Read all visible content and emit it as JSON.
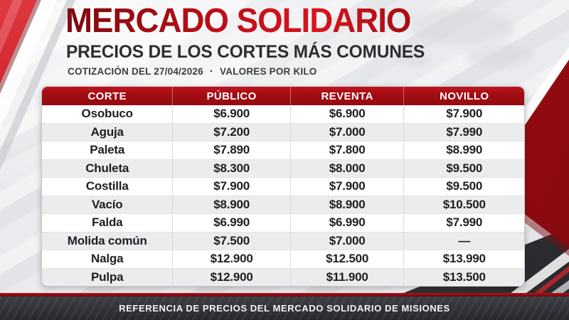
{
  "header": {
    "title": "MERCADO SOLIDARIO",
    "subtitle": "PRECIOS DE LOS CORTES MÁS COMUNES",
    "note_date": "COTIZACIÓN DEL 27/04/2026",
    "note_separator": "·",
    "note_unit": "VALORES POR KILO"
  },
  "table": {
    "columns": [
      "CORTE",
      "PÚBLICO",
      "REVENTA",
      "NOVILLO"
    ],
    "rows": [
      {
        "corte": "Osobuco",
        "publico": "$6.900",
        "reventa": "$6.900",
        "novillo": "$7.900"
      },
      {
        "corte": "Aguja",
        "publico": "$7.200",
        "reventa": "$7.000",
        "novillo": "$7.990"
      },
      {
        "corte": "Paleta",
        "publico": "$7.890",
        "reventa": "$7.800",
        "novillo": "$8.990"
      },
      {
        "corte": "Chuleta",
        "publico": "$8.300",
        "reventa": "$8.000",
        "novillo": "$9.500"
      },
      {
        "corte": "Costilla",
        "publico": "$7.900",
        "reventa": "$7.900",
        "novillo": "$9.500"
      },
      {
        "corte": "Vacío",
        "publico": "$8.900",
        "reventa": "$8.900",
        "novillo": "$10.500"
      },
      {
        "corte": "Falda",
        "publico": "$6.990",
        "reventa": "$6.990",
        "novillo": "$7.990"
      },
      {
        "corte": "Molida común",
        "publico": "$7.500",
        "reventa": "$7.000",
        "novillo": "—"
      },
      {
        "corte": "Nalga",
        "publico": "$12.900",
        "reventa": "$12.500",
        "novillo": "$13.990"
      },
      {
        "corte": "Pulpa",
        "publico": "$12.900",
        "reventa": "$11.900",
        "novillo": "$13.500"
      }
    ]
  },
  "footer": {
    "text": "REFERENCIA DE PRECIOS DEL MERCADO SOLIDARIO DE MISIONES"
  },
  "colors": {
    "accent_red": "#a80d13",
    "header_bar_red": "#a00c13",
    "dark_bar": "#303136",
    "row_alt": "#ebecee",
    "background": "#e7e8eb"
  },
  "chart_data": {
    "type": "table",
    "title": "MERCADO SOLIDARIO — PRECIOS DE LOS CORTES MÁS COMUNES",
    "subtitle": "COTIZACIÓN DEL 27/04/2026 · VALORES POR KILO",
    "columns": [
      "CORTE",
      "PÚBLICO",
      "REVENTA",
      "NOVILLO"
    ],
    "rows": [
      [
        "Osobuco",
        "$6.900",
        "$6.900",
        "$7.900"
      ],
      [
        "Aguja",
        "$7.200",
        "$7.000",
        "$7.990"
      ],
      [
        "Paleta",
        "$7.890",
        "$7.800",
        "$8.990"
      ],
      [
        "Chuleta",
        "$8.300",
        "$8.000",
        "$9.500"
      ],
      [
        "Costilla",
        "$7.900",
        "$7.900",
        "$9.500"
      ],
      [
        "Vacío",
        "$8.900",
        "$8.900",
        "$10.500"
      ],
      [
        "Falda",
        "$6.990",
        "$6.990",
        "$7.990"
      ],
      [
        "Molida común",
        "$7.500",
        "$7.000",
        "—"
      ],
      [
        "Nalga",
        "$12.900",
        "$12.500",
        "$13.990"
      ],
      [
        "Pulpa",
        "$12.900",
        "$11.900",
        "$13.500"
      ]
    ]
  }
}
